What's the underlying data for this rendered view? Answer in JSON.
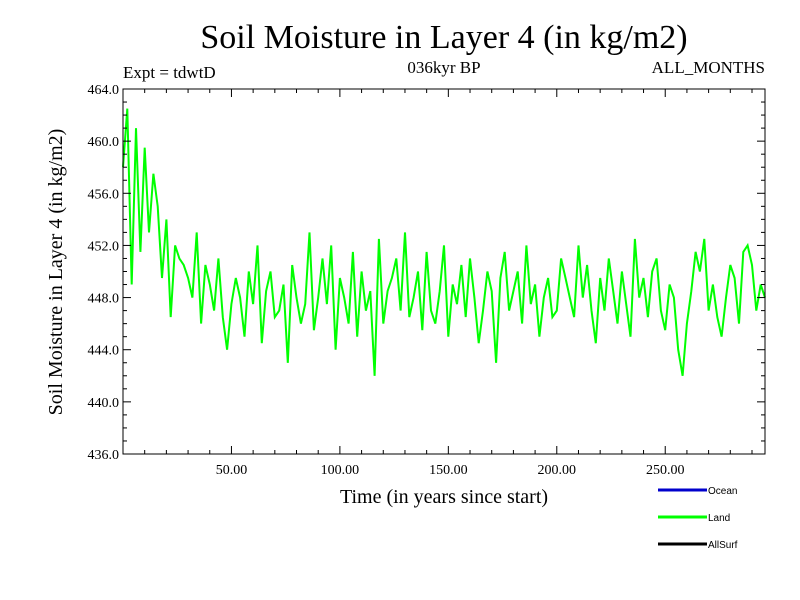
{
  "chart_data": {
    "type": "line",
    "title": "Soil Moisture in Layer 4 (in kg/m2)",
    "subtitle": "036kyr BP",
    "left_label": "Expt = tdwtD",
    "right_label": "ALL_MONTHS",
    "xlabel": "Time (in years since start)",
    "ylabel": "Soil Moisture in Layer 4 (in kg/m2)",
    "xlim": [
      0,
      296
    ],
    "ylim": [
      436,
      464
    ],
    "x_ticks": [
      50,
      100,
      150,
      200,
      250
    ],
    "x_tick_labels": [
      "50.00",
      "100.00",
      "150.00",
      "200.00",
      "250.00"
    ],
    "y_ticks": [
      436,
      440,
      444,
      448,
      452,
      456,
      460,
      464
    ],
    "y_tick_labels": [
      "436.0",
      "440.0",
      "444.0",
      "448.0",
      "452.0",
      "456.0",
      "460.0",
      "464.0"
    ],
    "series": [
      {
        "name": "Ocean",
        "color": "#0000cc",
        "x": [],
        "y": []
      },
      {
        "name": "Land",
        "color": "#00ff00",
        "x": [
          0,
          2,
          4,
          6,
          8,
          10,
          12,
          14,
          16,
          18,
          20,
          22,
          24,
          26,
          28,
          30,
          32,
          34,
          36,
          38,
          40,
          42,
          44,
          46,
          48,
          50,
          52,
          54,
          56,
          58,
          60,
          62,
          64,
          66,
          68,
          70,
          72,
          74,
          76,
          78,
          80,
          82,
          84,
          86,
          88,
          90,
          92,
          94,
          96,
          98,
          100,
          102,
          104,
          106,
          108,
          110,
          112,
          114,
          116,
          118,
          120,
          122,
          124,
          126,
          128,
          130,
          132,
          134,
          136,
          138,
          140,
          142,
          144,
          146,
          148,
          150,
          152,
          154,
          156,
          158,
          160,
          162,
          164,
          166,
          168,
          170,
          172,
          174,
          176,
          178,
          180,
          182,
          184,
          186,
          188,
          190,
          192,
          194,
          196,
          198,
          200,
          202,
          204,
          206,
          208,
          210,
          212,
          214,
          216,
          218,
          220,
          222,
          224,
          226,
          228,
          230,
          232,
          234,
          236,
          238,
          240,
          242,
          244,
          246,
          248,
          250,
          252,
          254,
          256,
          258,
          260,
          262,
          264,
          266,
          268,
          270,
          272,
          274,
          276,
          278,
          280,
          282,
          284,
          286,
          288,
          290,
          292,
          294,
          296
        ],
        "y": [
          458.0,
          462.5,
          449.0,
          461.0,
          451.5,
          459.5,
          453.0,
          457.5,
          455.0,
          449.5,
          454.0,
          446.5,
          452.0,
          451.0,
          450.5,
          449.5,
          448.0,
          453.0,
          446.0,
          450.5,
          449.0,
          447.0,
          451.0,
          446.5,
          444.0,
          447.5,
          449.5,
          448.0,
          445.0,
          450.0,
          447.5,
          452.0,
          444.5,
          448.5,
          450.0,
          446.5,
          447.0,
          449.0,
          443.0,
          450.5,
          448.0,
          446.0,
          447.5,
          453.0,
          445.5,
          448.0,
          451.0,
          447.5,
          452.0,
          444.0,
          449.5,
          448.0,
          446.0,
          451.5,
          445.0,
          450.0,
          447.0,
          448.5,
          442.0,
          452.5,
          446.0,
          448.5,
          449.5,
          451.0,
          447.0,
          453.0,
          446.5,
          448.0,
          450.0,
          445.5,
          451.5,
          447.0,
          446.0,
          448.5,
          452.0,
          445.0,
          449.0,
          447.5,
          450.5,
          446.5,
          451.0,
          448.0,
          444.5,
          447.0,
          450.0,
          448.5,
          443.0,
          449.5,
          451.5,
          447.0,
          448.5,
          450.0,
          446.0,
          452.0,
          447.5,
          449.0,
          445.0,
          448.0,
          449.5,
          446.5,
          447.0,
          451.0,
          449.5,
          448.0,
          446.5,
          452.0,
          448.0,
          450.5,
          447.0,
          444.5,
          449.5,
          447.0,
          451.0,
          448.5,
          446.0,
          450.0,
          447.5,
          445.0,
          452.5,
          448.0,
          449.5,
          446.5,
          450.0,
          451.0,
          447.0,
          445.5,
          449.0,
          448.0,
          444.0,
          442.0,
          446.0,
          448.5,
          451.5,
          450.0,
          452.5,
          447.0,
          449.0,
          446.5,
          445.0,
          448.0,
          450.5,
          449.5,
          446.0,
          451.5,
          452.0,
          450.5,
          447.0,
          449.0,
          448.0
        ]
      },
      {
        "name": "AllSurf",
        "color": "#000000",
        "x": [],
        "y": []
      }
    ],
    "legend_position": "bottom-right"
  }
}
